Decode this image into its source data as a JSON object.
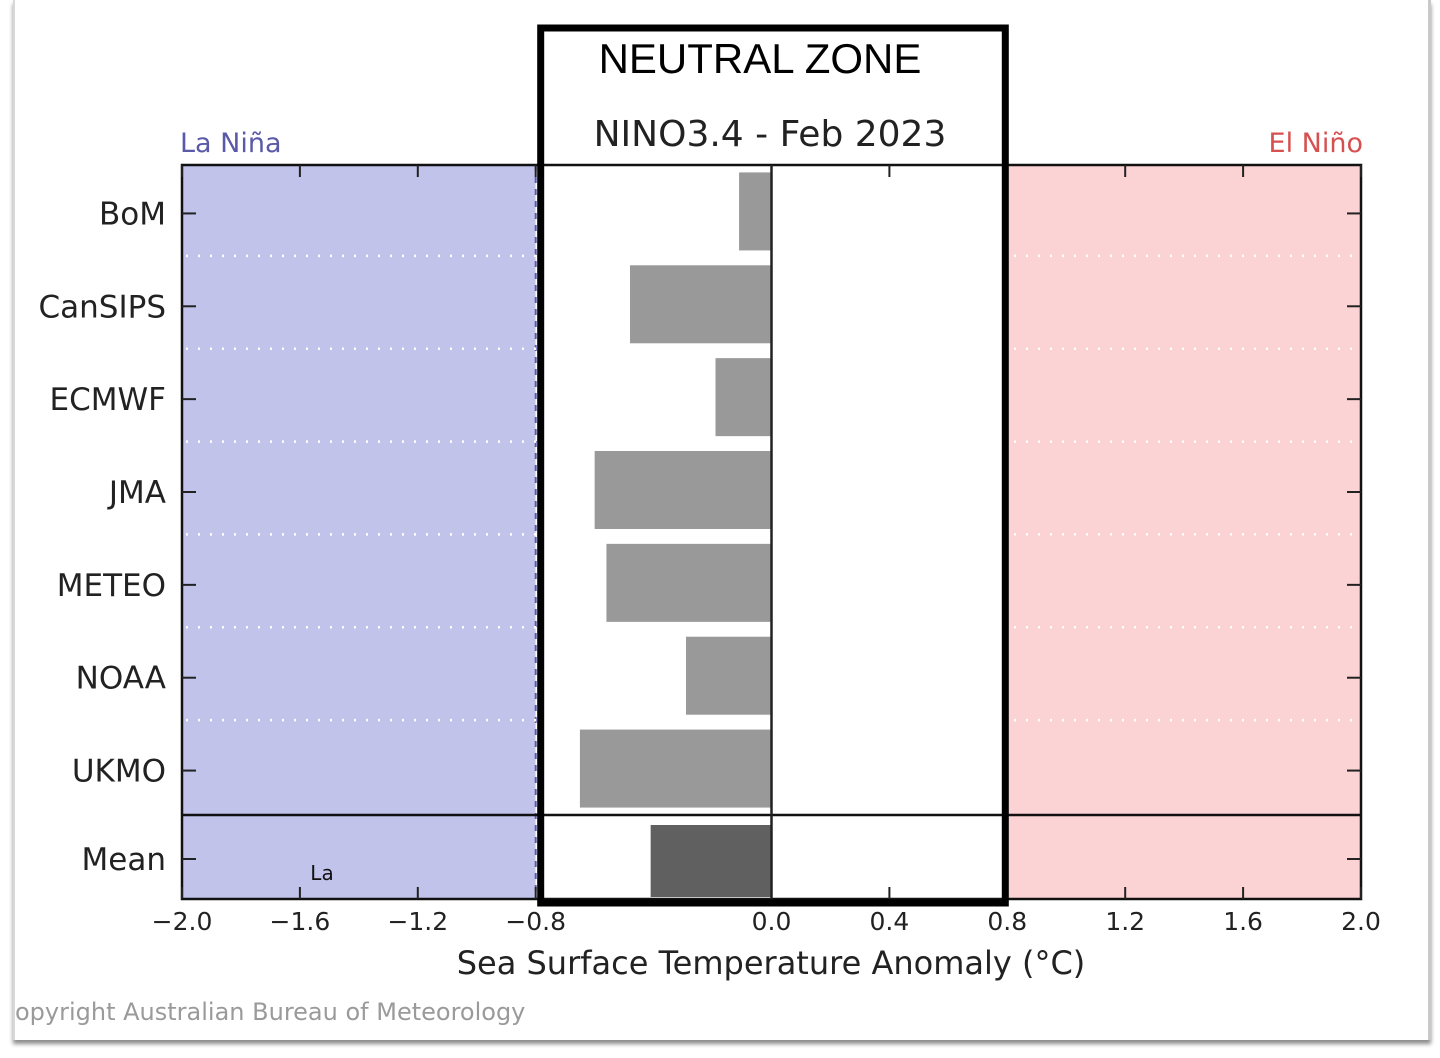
{
  "chart_data": {
    "type": "bar",
    "orientation": "horizontal",
    "title": "NINO3.4 - Feb 2023",
    "annotation_box_title": "NEUTRAL ZONE",
    "xlabel": "Sea Surface Temperature Anomaly (°C)",
    "ylabel": "",
    "xlim": [
      -2.0,
      2.0
    ],
    "xticks": [
      -2.0,
      -1.6,
      -1.2,
      -0.8,
      0.0,
      0.4,
      0.8,
      1.2,
      1.6,
      2.0
    ],
    "xtick_labels": [
      "−2.0",
      "−1.6",
      "−1.2",
      "−0.8",
      "0.0",
      "0.4",
      "0.8",
      "1.2",
      "1.6",
      "2.0"
    ],
    "categories": [
      "BoM",
      "CanSIPS",
      "ECMWF",
      "JMA",
      "METEO",
      "NOAA",
      "UKMO",
      "Mean"
    ],
    "values": [
      -0.11,
      -0.48,
      -0.19,
      -0.6,
      -0.56,
      -0.29,
      -0.65,
      -0.41
    ],
    "regions": [
      {
        "name": "La Niña",
        "from": -2.0,
        "to": -0.8,
        "color": "#c1c3ea"
      },
      {
        "name": "Neutral",
        "from": -0.8,
        "to": 0.8,
        "color": "#ffffff"
      },
      {
        "name": "El Niño",
        "from": 0.8,
        "to": 2.0,
        "color": "#fcd3d4"
      }
    ],
    "region_labels": {
      "left": "La Niña",
      "right": "El Niño"
    },
    "bar_color": "#999999",
    "mean_bar_color": "#606060",
    "grid": "dotted horizontal separators between models",
    "in_plot_text": "La",
    "neutral_zone_box": [
      -0.8,
      0.8
    ]
  },
  "colors": {
    "la_nina_text": "#5a5aa8",
    "el_nino_text": "#d65050"
  },
  "footer": {
    "copyright": "opyright Australian Bureau of Meteorology"
  }
}
